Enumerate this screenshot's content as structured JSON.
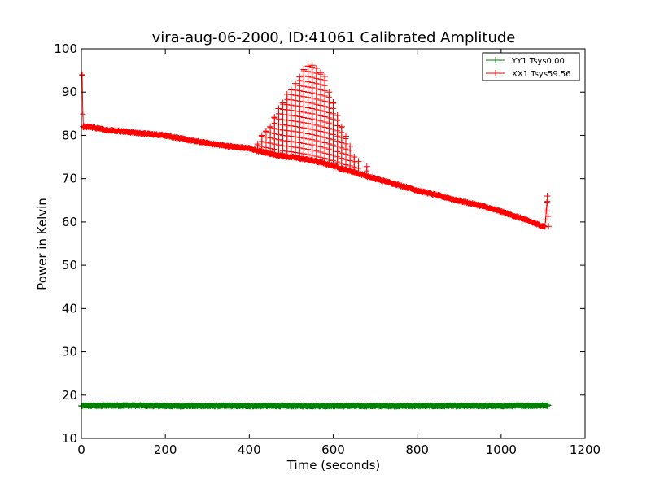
{
  "chart_data": {
    "type": "line",
    "title": "vira-aug-06-2000, ID:41061 Calibrated Amplitude",
    "xlabel": "Time (seconds)",
    "ylabel": "Power in Kelvin",
    "xlim": [
      0,
      1200
    ],
    "ylim": [
      10,
      100
    ],
    "xticks": [
      0,
      200,
      400,
      600,
      800,
      1000,
      1200
    ],
    "yticks": [
      10,
      20,
      30,
      40,
      50,
      60,
      70,
      80,
      90,
      100
    ],
    "grid": false,
    "legend_position": "top-right",
    "marker": "+",
    "series": [
      {
        "name": "YY1 Tsys0.00",
        "color": "#008000",
        "points": [
          [
            0,
            17.5
          ],
          [
            100,
            17.6
          ],
          [
            200,
            17.5
          ],
          [
            300,
            17.5
          ],
          [
            400,
            17.5
          ],
          [
            500,
            17.5
          ],
          [
            600,
            17.5
          ],
          [
            700,
            17.5
          ],
          [
            800,
            17.5
          ],
          [
            900,
            17.5
          ],
          [
            1000,
            17.5
          ],
          [
            1112,
            17.6
          ]
        ]
      },
      {
        "name": "XX1 Tsys59.56",
        "color": "#ff0000",
        "points": [
          [
            2,
            94
          ],
          [
            4,
            82
          ],
          [
            20,
            82
          ],
          [
            50,
            81.4
          ],
          [
            100,
            80.9
          ],
          [
            150,
            80.4
          ],
          [
            200,
            80
          ],
          [
            250,
            79
          ],
          [
            300,
            78.2
          ],
          [
            350,
            77.5
          ],
          [
            400,
            77
          ],
          [
            430,
            76.2
          ],
          [
            450,
            75.8
          ],
          [
            480,
            75.2
          ],
          [
            500,
            75
          ],
          [
            520,
            74.7
          ],
          [
            550,
            74.2
          ],
          [
            580,
            73.5
          ],
          [
            600,
            73
          ],
          [
            620,
            72.3
          ],
          [
            650,
            71.5
          ],
          [
            700,
            70
          ],
          [
            750,
            68.7
          ],
          [
            800,
            67.3
          ],
          [
            850,
            66.1
          ],
          [
            900,
            64.9
          ],
          [
            950,
            63.8
          ],
          [
            1000,
            62.4
          ],
          [
            1050,
            60.8
          ],
          [
            1090,
            59.3
          ],
          [
            1105,
            59
          ],
          [
            1110,
            66
          ],
          [
            1113,
            59
          ]
        ],
        "spikes": [
          [
            420,
            78
          ],
          [
            430,
            80
          ],
          [
            440,
            81
          ],
          [
            450,
            82
          ],
          [
            460,
            84.2
          ],
          [
            470,
            86.2
          ],
          [
            480,
            87.5
          ],
          [
            490,
            89.5
          ],
          [
            500,
            90.5
          ],
          [
            510,
            92
          ],
          [
            520,
            93.5
          ],
          [
            530,
            95.2
          ],
          [
            540,
            96
          ],
          [
            550,
            96.2
          ],
          [
            560,
            95.5
          ],
          [
            570,
            94.5
          ],
          [
            580,
            93.6
          ],
          [
            590,
            90
          ],
          [
            600,
            87.6
          ],
          [
            610,
            84.6
          ],
          [
            620,
            82
          ],
          [
            630,
            79.8
          ],
          [
            640,
            77.5
          ],
          [
            650,
            75
          ],
          [
            660,
            74
          ],
          [
            680,
            72.8
          ]
        ]
      }
    ]
  }
}
